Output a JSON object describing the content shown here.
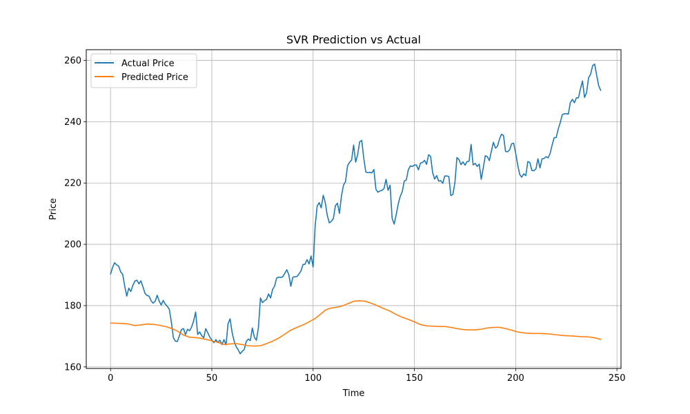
{
  "chart_data": {
    "type": "line",
    "title": "SVR Prediction vs Actual",
    "xlabel": "Time",
    "ylabel": "Price",
    "xlim": [
      -12,
      252
    ],
    "ylim": [
      159.5,
      263.5
    ],
    "xticks": [
      0,
      50,
      100,
      150,
      200,
      250
    ],
    "yticks": [
      160,
      180,
      200,
      220,
      240,
      260
    ],
    "grid": true,
    "legend_position": "top-left",
    "series": [
      {
        "name": "Actual Price",
        "color": "#1f77b4",
        "points": [
          [
            0,
            190.3
          ],
          [
            1,
            192.5
          ],
          [
            2,
            194.0
          ],
          [
            3,
            193.3
          ],
          [
            4,
            192.9
          ],
          [
            5,
            191.0
          ],
          [
            6,
            190.2
          ],
          [
            7,
            186.3
          ],
          [
            8,
            183.1
          ],
          [
            9,
            185.7
          ],
          [
            10,
            184.6
          ],
          [
            11,
            186.6
          ],
          [
            12,
            188.0
          ],
          [
            13,
            188.3
          ],
          [
            14,
            187.1
          ],
          [
            15,
            188.1
          ],
          [
            16,
            186.1
          ],
          [
            17,
            184.0
          ],
          [
            18,
            183.3
          ],
          [
            19,
            183.1
          ],
          [
            20,
            181.6
          ],
          [
            21,
            180.8
          ],
          [
            22,
            181.4
          ],
          [
            23,
            183.4
          ],
          [
            24,
            181.5
          ],
          [
            25,
            180.2
          ],
          [
            26,
            181.7
          ],
          [
            27,
            180.5
          ],
          [
            28,
            179.8
          ],
          [
            29,
            178.8
          ],
          [
            30,
            174.7
          ],
          [
            31,
            169.6
          ],
          [
            32,
            168.4
          ],
          [
            33,
            168.3
          ],
          [
            34,
            170.2
          ],
          [
            35,
            172.2
          ],
          [
            36,
            172.5
          ],
          [
            37,
            170.5
          ],
          [
            38,
            172.3
          ],
          [
            39,
            171.8
          ],
          [
            40,
            173.0
          ],
          [
            41,
            175.0
          ],
          [
            42,
            177.9
          ],
          [
            43,
            170.6
          ],
          [
            44,
            171.4
          ],
          [
            45,
            170.2
          ],
          [
            46,
            169.5
          ],
          [
            47,
            172.5
          ],
          [
            48,
            171.1
          ],
          [
            49,
            169.7
          ],
          [
            50,
            168.8
          ],
          [
            51,
            167.9
          ],
          [
            52,
            168.9
          ],
          [
            53,
            168.0
          ],
          [
            54,
            168.7
          ],
          [
            55,
            167.3
          ],
          [
            56,
            168.9
          ],
          [
            57,
            167.2
          ],
          [
            58,
            174.1
          ],
          [
            59,
            175.7
          ],
          [
            60,
            171.3
          ],
          [
            61,
            168.4
          ],
          [
            62,
            166.6
          ],
          [
            63,
            165.6
          ],
          [
            64,
            164.3
          ],
          [
            65,
            165.1
          ],
          [
            66,
            165.7
          ],
          [
            67,
            168.3
          ],
          [
            68,
            169.1
          ],
          [
            69,
            168.6
          ],
          [
            70,
            172.7
          ],
          [
            71,
            169.7
          ],
          [
            72,
            168.7
          ],
          [
            73,
            172.8
          ],
          [
            74,
            182.5
          ],
          [
            75,
            181.0
          ],
          [
            76,
            181.6
          ],
          [
            77,
            182.0
          ],
          [
            78,
            183.8
          ],
          [
            79,
            182.5
          ],
          [
            80,
            185.3
          ],
          [
            81,
            186.4
          ],
          [
            82,
            189.0
          ],
          [
            83,
            189.3
          ],
          [
            84,
            189.2
          ],
          [
            85,
            189.4
          ],
          [
            86,
            190.5
          ],
          [
            87,
            191.7
          ],
          [
            88,
            190.1
          ],
          [
            89,
            186.3
          ],
          [
            90,
            189.3
          ],
          [
            91,
            189.4
          ],
          [
            92,
            189.5
          ],
          [
            93,
            190.3
          ],
          [
            94,
            191.3
          ],
          [
            95,
            193.4
          ],
          [
            96,
            193.5
          ],
          [
            97,
            195.0
          ],
          [
            98,
            193.6
          ],
          [
            99,
            196.2
          ],
          [
            100,
            192.6
          ],
          [
            101,
            205.9
          ],
          [
            102,
            212.5
          ],
          [
            103,
            213.6
          ],
          [
            104,
            211.9
          ],
          [
            105,
            216.0
          ],
          [
            106,
            213.6
          ],
          [
            107,
            209.4
          ],
          [
            108,
            207.0
          ],
          [
            109,
            207.5
          ],
          [
            110,
            208.4
          ],
          [
            111,
            212.6
          ],
          [
            112,
            213.4
          ],
          [
            113,
            210.1
          ],
          [
            114,
            215.8
          ],
          [
            115,
            219.3
          ],
          [
            116,
            220.5
          ],
          [
            117,
            225.6
          ],
          [
            118,
            226.8
          ],
          [
            119,
            227.5
          ],
          [
            120,
            232.4
          ],
          [
            121,
            226.8
          ],
          [
            122,
            229.3
          ],
          [
            123,
            233.5
          ],
          [
            124,
            233.9
          ],
          [
            125,
            228.1
          ],
          [
            126,
            223.6
          ],
          [
            127,
            223.4
          ],
          [
            128,
            223.5
          ],
          [
            129,
            223.3
          ],
          [
            130,
            224.4
          ],
          [
            131,
            218.0
          ],
          [
            132,
            217.0
          ],
          [
            133,
            217.4
          ],
          [
            134,
            217.6
          ],
          [
            135,
            218.2
          ],
          [
            136,
            221.2
          ],
          [
            137,
            217.6
          ],
          [
            138,
            219.3
          ],
          [
            139,
            208.5
          ],
          [
            140,
            206.6
          ],
          [
            141,
            209.6
          ],
          [
            142,
            213.1
          ],
          [
            143,
            215.6
          ],
          [
            144,
            217.2
          ],
          [
            145,
            220.6
          ],
          [
            146,
            221.0
          ],
          [
            147,
            224.3
          ],
          [
            148,
            225.6
          ],
          [
            149,
            225.4
          ],
          [
            150,
            225.9
          ],
          [
            151,
            225.9
          ],
          [
            152,
            224.3
          ],
          [
            153,
            226.5
          ],
          [
            154,
            226.7
          ],
          [
            155,
            227.4
          ],
          [
            156,
            226.1
          ],
          [
            157,
            229.2
          ],
          [
            158,
            228.7
          ],
          [
            159,
            223.4
          ],
          [
            160,
            221.3
          ],
          [
            161,
            222.4
          ],
          [
            162,
            220.6
          ],
          [
            163,
            220.8
          ],
          [
            164,
            219.9
          ],
          [
            165,
            222.3
          ],
          [
            166,
            222.3
          ],
          [
            167,
            222.1
          ],
          [
            168,
            215.9
          ],
          [
            169,
            216.3
          ],
          [
            170,
            220.1
          ],
          [
            171,
            228.3
          ],
          [
            172,
            227.7
          ],
          [
            173,
            226.0
          ],
          [
            174,
            226.9
          ],
          [
            175,
            225.8
          ],
          [
            176,
            227.0
          ],
          [
            177,
            227.1
          ],
          [
            178,
            232.6
          ],
          [
            179,
            225.9
          ],
          [
            180,
            226.4
          ],
          [
            181,
            225.4
          ],
          [
            182,
            226.2
          ],
          [
            183,
            221.2
          ],
          [
            184,
            224.9
          ],
          [
            185,
            228.9
          ],
          [
            186,
            228.6
          ],
          [
            187,
            227.3
          ],
          [
            188,
            230.4
          ],
          [
            189,
            233.3
          ],
          [
            190,
            231.4
          ],
          [
            191,
            232.0
          ],
          [
            192,
            234.3
          ],
          [
            193,
            235.9
          ],
          [
            194,
            235.5
          ],
          [
            195,
            230.3
          ],
          [
            196,
            230.2
          ],
          [
            197,
            230.8
          ],
          [
            198,
            232.8
          ],
          [
            199,
            233.0
          ],
          [
            200,
            229.7
          ],
          [
            201,
            225.9
          ],
          [
            202,
            222.8
          ],
          [
            203,
            221.9
          ],
          [
            204,
            223.0
          ],
          [
            205,
            222.4
          ],
          [
            206,
            227.0
          ],
          [
            207,
            226.7
          ],
          [
            208,
            224.1
          ],
          [
            209,
            224.0
          ],
          [
            210,
            224.6
          ],
          [
            211,
            227.9
          ],
          [
            212,
            224.9
          ],
          [
            213,
            227.9
          ],
          [
            214,
            228.0
          ],
          [
            215,
            228.6
          ],
          [
            216,
            228.2
          ],
          [
            217,
            229.6
          ],
          [
            218,
            232.4
          ],
          [
            219,
            234.8
          ],
          [
            220,
            234.8
          ],
          [
            221,
            237.6
          ],
          [
            222,
            239.7
          ],
          [
            223,
            242.3
          ],
          [
            224,
            242.6
          ],
          [
            225,
            242.6
          ],
          [
            226,
            242.5
          ],
          [
            227,
            246.3
          ],
          [
            228,
            247.3
          ],
          [
            229,
            246.2
          ],
          [
            230,
            247.8
          ],
          [
            231,
            247.8
          ],
          [
            232,
            250.8
          ],
          [
            233,
            253.3
          ],
          [
            234,
            247.9
          ],
          [
            235,
            249.5
          ],
          [
            236,
            254.4
          ],
          [
            237,
            255.5
          ],
          [
            238,
            258.3
          ],
          [
            239,
            258.8
          ],
          [
            240,
            255.1
          ],
          [
            241,
            251.7
          ],
          [
            242,
            250.2
          ]
        ]
      },
      {
        "name": "Predicted Price",
        "color": "#ff7f0e",
        "points": [
          [
            0,
            174.3
          ],
          [
            5,
            174.2
          ],
          [
            8,
            174.1
          ],
          [
            10,
            173.8
          ],
          [
            12,
            173.5
          ],
          [
            15,
            173.7
          ],
          [
            18,
            174.0
          ],
          [
            21,
            173.9
          ],
          [
            24,
            173.6
          ],
          [
            27,
            173.2
          ],
          [
            30,
            172.6
          ],
          [
            33,
            171.7
          ],
          [
            36,
            170.4
          ],
          [
            39,
            169.7
          ],
          [
            43,
            169.5
          ],
          [
            47,
            169.0
          ],
          [
            50,
            168.5
          ],
          [
            53,
            168.0
          ],
          [
            56,
            167.3
          ],
          [
            59,
            167.5
          ],
          [
            62,
            167.6
          ],
          [
            65,
            167.3
          ],
          [
            68,
            166.9
          ],
          [
            71,
            166.8
          ],
          [
            74,
            166.9
          ],
          [
            77,
            167.6
          ],
          [
            80,
            168.4
          ],
          [
            83,
            169.4
          ],
          [
            86,
            170.7
          ],
          [
            89,
            172.0
          ],
          [
            92,
            172.9
          ],
          [
            95,
            173.7
          ],
          [
            98,
            174.7
          ],
          [
            101,
            175.8
          ],
          [
            104,
            177.4
          ],
          [
            106,
            178.5
          ],
          [
            108,
            179.1
          ],
          [
            111,
            179.4
          ],
          [
            114,
            179.8
          ],
          [
            117,
            180.6
          ],
          [
            120,
            181.4
          ],
          [
            123,
            181.6
          ],
          [
            126,
            181.4
          ],
          [
            129,
            180.7
          ],
          [
            132,
            179.9
          ],
          [
            135,
            179.0
          ],
          [
            138,
            178.2
          ],
          [
            141,
            177.1
          ],
          [
            144,
            176.2
          ],
          [
            147,
            175.5
          ],
          [
            150,
            174.7
          ],
          [
            153,
            173.8
          ],
          [
            156,
            173.4
          ],
          [
            159,
            173.3
          ],
          [
            162,
            173.2
          ],
          [
            165,
            173.2
          ],
          [
            168,
            172.9
          ],
          [
            171,
            172.5
          ],
          [
            174,
            172.2
          ],
          [
            177,
            172.1
          ],
          [
            180,
            172.1
          ],
          [
            183,
            172.3
          ],
          [
            186,
            172.7
          ],
          [
            189,
            172.9
          ],
          [
            192,
            172.9
          ],
          [
            195,
            172.5
          ],
          [
            198,
            172.0
          ],
          [
            201,
            171.4
          ],
          [
            204,
            171.1
          ],
          [
            208,
            170.9
          ],
          [
            212,
            170.9
          ],
          [
            216,
            170.8
          ],
          [
            220,
            170.5
          ],
          [
            224,
            170.2
          ],
          [
            228,
            170.1
          ],
          [
            232,
            169.9
          ],
          [
            236,
            169.8
          ],
          [
            239,
            169.5
          ],
          [
            242,
            169.0
          ]
        ]
      }
    ]
  }
}
